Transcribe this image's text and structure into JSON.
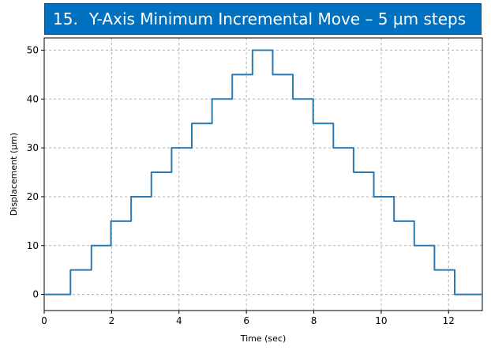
{
  "banner": {
    "number": "15.",
    "title": "Y-Axis Minimum Incremental Move – 5 µm steps"
  },
  "chart_data": {
    "type": "line",
    "title": "",
    "xlabel": "Time (sec)",
    "ylabel": "Displacement (µm)",
    "xlim": [
      0,
      13
    ],
    "ylim": [
      -3.3,
      52.5
    ],
    "xticks": [
      0,
      2,
      4,
      6,
      8,
      10,
      12
    ],
    "yticks": [
      0,
      10,
      20,
      30,
      40,
      50
    ],
    "grid": true,
    "series_color": "#2b79b0",
    "series": [
      {
        "x": [
          0,
          0.78,
          0.78,
          1.4,
          1.4,
          1.98,
          1.98,
          2.58,
          2.58,
          3.18,
          3.18,
          3.78,
          3.78,
          4.38,
          4.38,
          4.98,
          4.98,
          5.58,
          5.58,
          6.18,
          6.18,
          6.78,
          6.78,
          7.38,
          7.38,
          7.98,
          7.98,
          8.58,
          8.58,
          9.18,
          9.18,
          9.78,
          9.78,
          10.38,
          10.38,
          10.98,
          10.98,
          11.58,
          11.58,
          12.18,
          12.18,
          13
        ],
        "y": [
          0,
          0,
          5,
          5,
          10,
          10,
          15,
          15,
          20,
          20,
          25,
          25,
          30,
          30,
          35,
          35,
          40,
          40,
          45,
          45,
          50,
          50,
          45,
          45,
          40,
          40,
          35,
          35,
          30,
          30,
          25,
          25,
          20,
          20,
          15,
          15,
          10,
          10,
          5,
          5,
          0,
          0
        ]
      }
    ]
  }
}
